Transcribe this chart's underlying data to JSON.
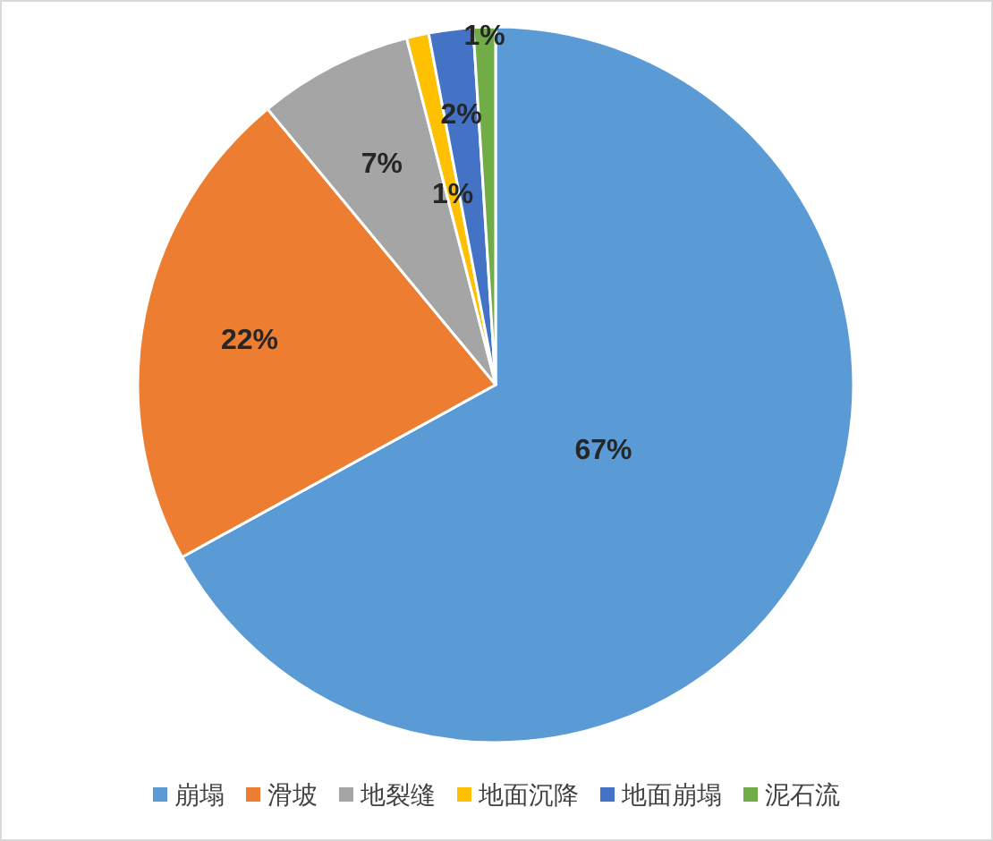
{
  "chart_data": {
    "type": "pie",
    "categories": [
      "崩塌",
      "滑坡",
      "地裂缝",
      "地面沉降",
      "地面崩塌",
      "泥石流"
    ],
    "values": [
      67,
      22,
      7,
      1,
      2,
      1
    ],
    "colors": [
      "#5b9bd5",
      "#ed7d31",
      "#a5a5a5",
      "#ffc000",
      "#4472c4",
      "#70ad47"
    ],
    "value_labels": [
      "67%",
      "22%",
      "7%",
      "1%",
      "2%",
      "1%"
    ],
    "legend": "bottom"
  }
}
